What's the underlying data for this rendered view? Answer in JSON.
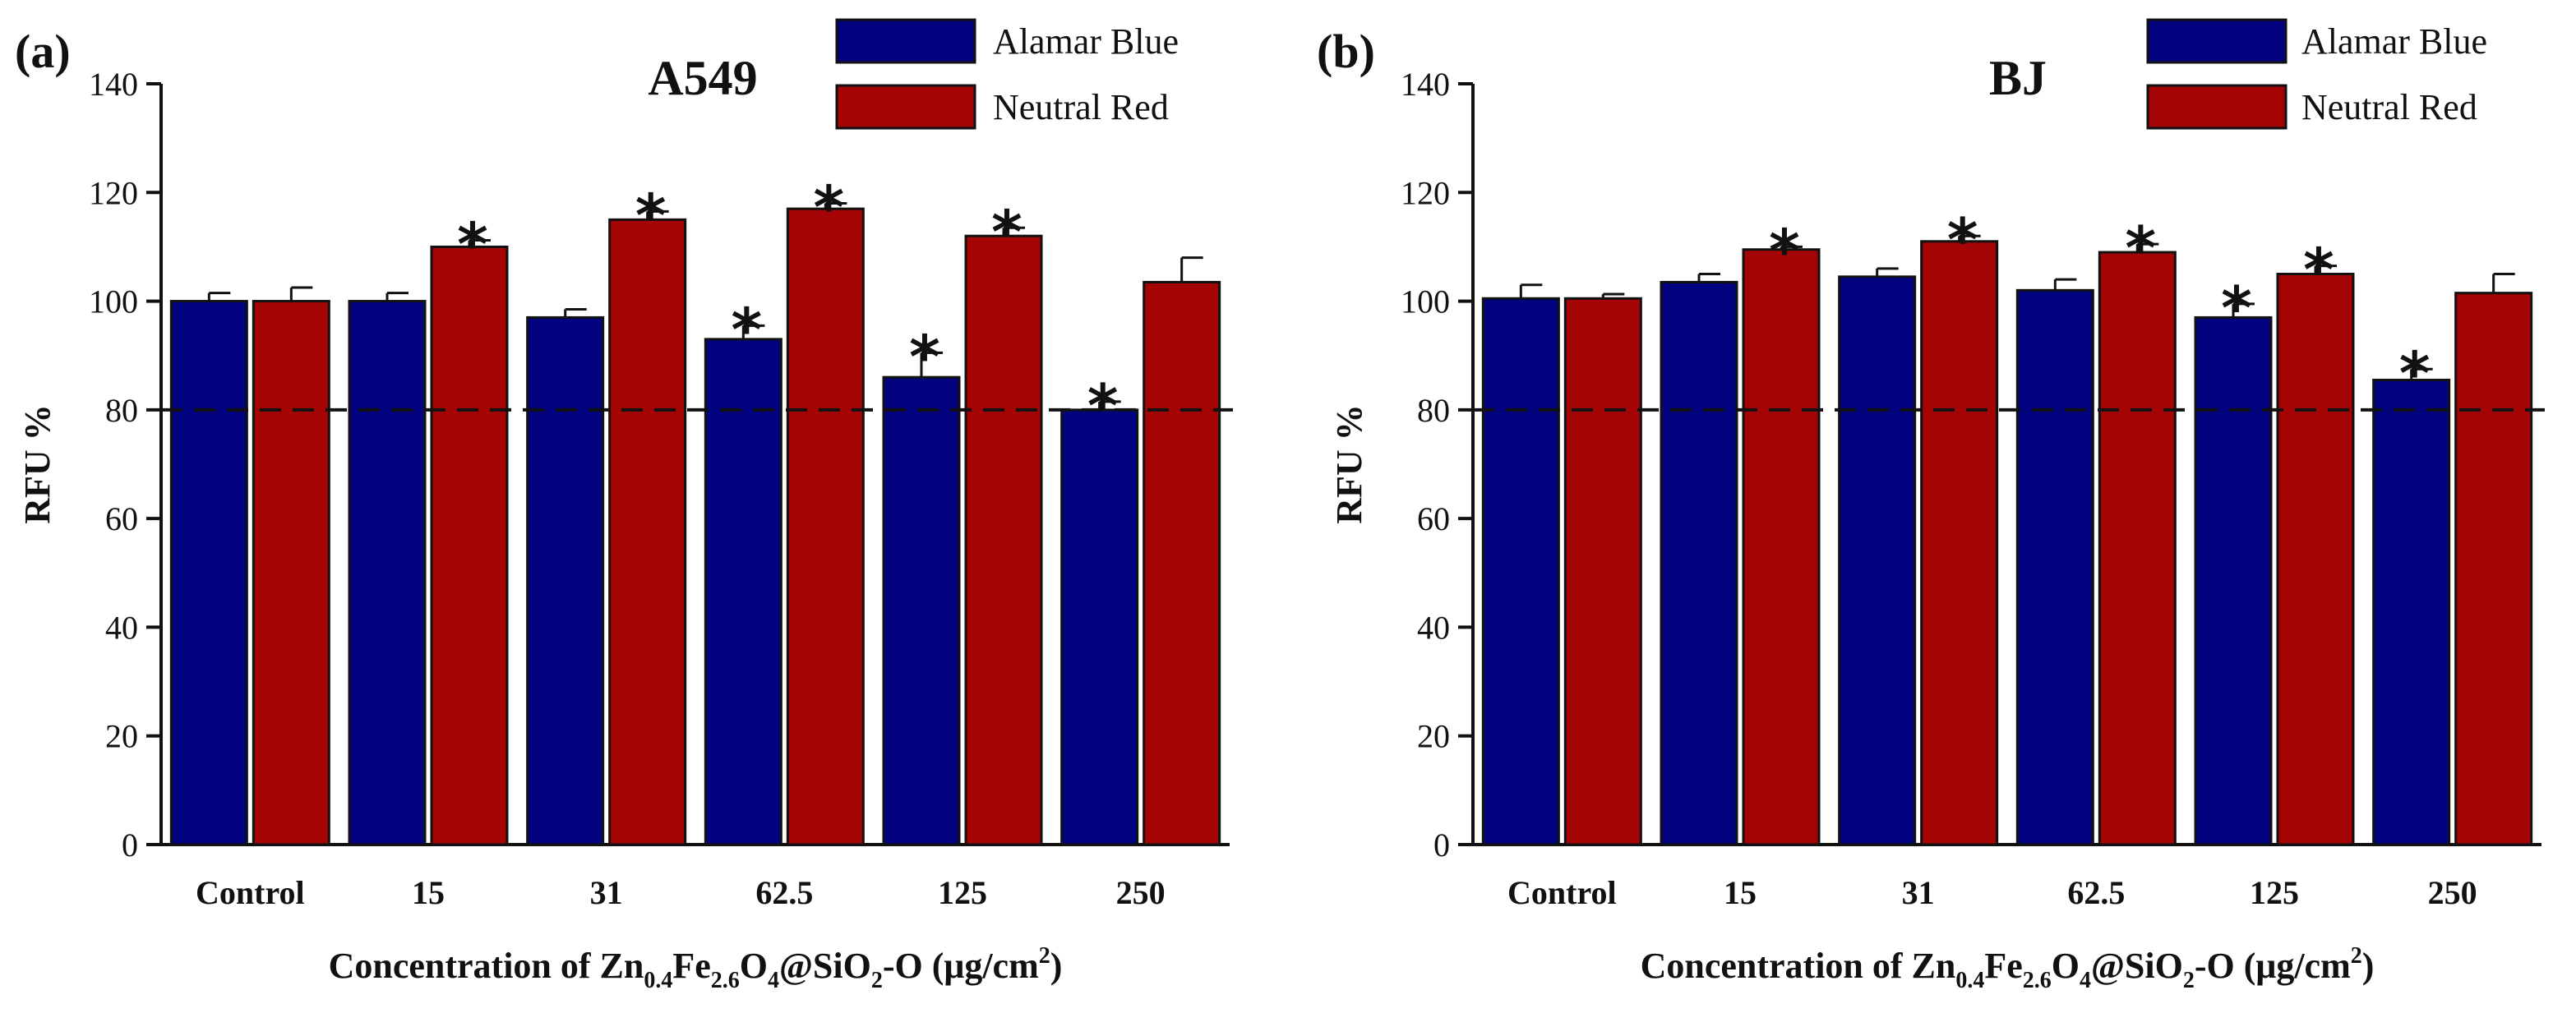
{
  "chart_data": [
    {
      "type": "bar",
      "panel": "(a)",
      "title": "A549",
      "xlabel": "Concentration of Zn0.4Fe2.6O4@SiO2-O (μg/cm2)",
      "xlabel_parts": {
        "prefix": "Concentration of Zn",
        "zn_sub": "0.4",
        "fe": "Fe",
        "fe_sub": "2.6",
        "o": "O",
        "o_sub": "4",
        "sio": "@SiO",
        "sio_sub": "2",
        "rest": "-O (μg/cm",
        "unit_sup": "2",
        "end": ")"
      },
      "ylabel": "RFU %",
      "ylim": [
        0,
        140
      ],
      "yticks": [
        "0",
        "20",
        "40",
        "60",
        "80",
        "100",
        "120",
        "140"
      ],
      "reference_line": 80,
      "categories": [
        "Control",
        "15",
        "31",
        "62.5",
        "125",
        "250"
      ],
      "significance_marker": "*",
      "legend": {
        "position": "top-right"
      },
      "series": [
        {
          "name": "Alamar Blue",
          "color": "#03037f",
          "values": [
            100,
            100,
            97,
            93,
            86,
            80
          ],
          "errors": [
            1.5,
            1.5,
            1.5,
            2.5,
            4.5,
            1.5
          ],
          "significant": [
            false,
            false,
            false,
            true,
            true,
            true
          ]
        },
        {
          "name": "Neutral Red",
          "color": "#a50404",
          "values": [
            100,
            110,
            115,
            117,
            112,
            103.5
          ],
          "errors": [
            2.5,
            1.2,
            1.5,
            1.0,
            1.5,
            4.5
          ],
          "significant": [
            false,
            true,
            true,
            true,
            true,
            false
          ]
        }
      ]
    },
    {
      "type": "bar",
      "panel": "(b)",
      "title": "BJ",
      "xlabel": "Concentration of Zn0.4Fe2.6O4@SiO2-O (μg/cm2)",
      "xlabel_parts": {
        "prefix": "Concentration of Zn",
        "zn_sub": "0.4",
        "fe": "Fe",
        "fe_sub": "2.6",
        "o": "O",
        "o_sub": "4",
        "sio": "@SiO",
        "sio_sub": "2",
        "rest": "-O (μg/cm",
        "unit_sup": "2",
        "end": ")"
      },
      "ylabel": "RFU %",
      "ylim": [
        0,
        140
      ],
      "yticks": [
        "0",
        "20",
        "40",
        "60",
        "80",
        "100",
        "120",
        "140"
      ],
      "reference_line": 80,
      "categories": [
        "Control",
        "15",
        "31",
        "62.5",
        "125",
        "250"
      ],
      "significance_marker": "*",
      "legend": {
        "position": "top-right"
      },
      "series": [
        {
          "name": "Alamar Blue",
          "color": "#03037f",
          "values": [
            100.5,
            103.5,
            104.5,
            102,
            97,
            85.5
          ],
          "errors": [
            2.5,
            1.5,
            1.5,
            2.0,
            2.5,
            2.0
          ],
          "significant": [
            false,
            false,
            false,
            false,
            true,
            true
          ]
        },
        {
          "name": "Neutral Red",
          "color": "#a50404",
          "values": [
            100.5,
            109.5,
            111,
            109,
            105,
            101.5
          ],
          "errors": [
            0.8,
            0.5,
            1.0,
            1.5,
            1.5,
            3.5
          ],
          "significant": [
            false,
            true,
            true,
            true,
            true,
            false
          ]
        }
      ]
    }
  ]
}
